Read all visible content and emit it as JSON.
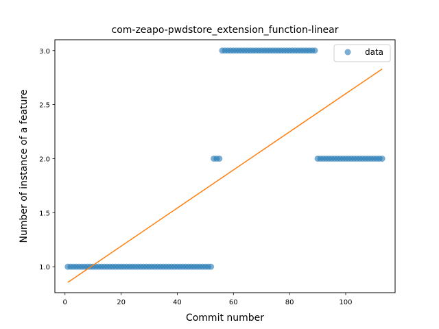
{
  "chart_data": {
    "type": "scatter",
    "title": "com-zeapo-pwdstore_extension_function-linear",
    "xlabel": "Commit number",
    "ylabel": "Number of instance of a feature",
    "xlim": [
      -3.6,
      117.6
    ],
    "ylim": [
      0.76,
      3.1
    ],
    "xticks": [
      0,
      20,
      40,
      60,
      80,
      100
    ],
    "yticks": [
      1.0,
      1.5,
      2.0,
      2.5,
      3.0
    ],
    "xtick_labels": [
      "0",
      "20",
      "40",
      "60",
      "80",
      "100"
    ],
    "ytick_labels": [
      "1.0",
      "1.5",
      "2.0",
      "2.5",
      "3.0"
    ],
    "legend_position": "top-right",
    "grid": false,
    "series": [
      {
        "name": "data",
        "kind": "scatter",
        "color": "#1f77b4",
        "segments": [
          {
            "x_start": 1,
            "x_end": 52,
            "y": 1
          },
          {
            "x_start": 53,
            "x_end": 55,
            "y": 2
          },
          {
            "x_start": 56,
            "x_end": 89,
            "y": 3
          },
          {
            "x_start": 90,
            "x_end": 113,
            "y": 2
          }
        ]
      },
      {
        "kind": "line",
        "color": "#ff7f0e",
        "x": [
          1,
          113
        ],
        "y": [
          0.855,
          2.83
        ]
      }
    ]
  }
}
